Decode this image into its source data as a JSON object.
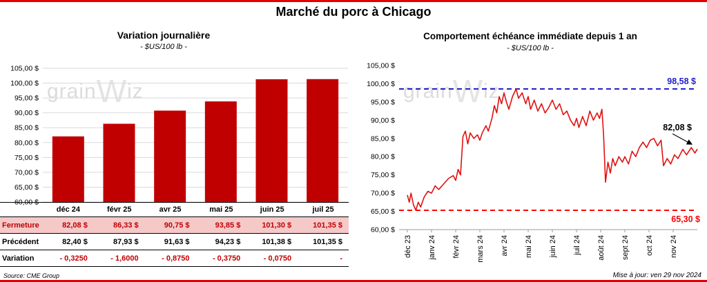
{
  "page": {
    "title": "Marché du porc à Chicago",
    "source": "Source: CME Group",
    "updated": "Mise à jour: ven 29 nov 2024",
    "watermark": {
      "part1": "grain",
      "part2": "W",
      "part3": "iz"
    }
  },
  "colors": {
    "bar": "#c00000",
    "line": "#e01010",
    "resistance": "#1f1fc8",
    "support": "#ff0000",
    "grid": "#d9d9d9",
    "axis": "#9a9a9a",
    "highlight_bg": "#f6c9c9",
    "value_red": "#c00000"
  },
  "table": {
    "columns": [
      "déc 24",
      "févr 25",
      "avr 25",
      "mai 25",
      "juin 25",
      "juil 25"
    ],
    "rows": [
      {
        "label": "Fermeture",
        "values": [
          "82,08 $",
          "86,33 $",
          "90,75 $",
          "93,85 $",
          "101,30 $",
          "101,35 $"
        ]
      },
      {
        "label": "Précédent",
        "values": [
          "82,40 $",
          "87,93 $",
          "91,63 $",
          "94,23 $",
          "101,38 $",
          "101,35 $"
        ]
      },
      {
        "label": "Variation",
        "values": [
          "- 0,3250",
          "- 1,6000",
          "- 0,8750",
          "- 0,3750",
          "- 0,0750",
          "-"
        ]
      }
    ]
  },
  "chart_data": [
    {
      "type": "bar",
      "title": "Variation journalière",
      "subtitle": "- $US/100 lb -",
      "categories": [
        "déc 24",
        "févr 25",
        "avr 25",
        "mai 25",
        "juin 25",
        "juil 25"
      ],
      "values": [
        82.08,
        86.33,
        90.75,
        93.85,
        101.3,
        101.35
      ],
      "ylim": [
        60,
        105
      ],
      "ytick_step": 5,
      "grid": true,
      "bar_color": "#c00000"
    },
    {
      "type": "line",
      "title": "Comportement échéance immédiate depuis 1 an",
      "subtitle": "- $US/100 lb -",
      "x_labels": [
        "déc 23",
        "janv 24",
        "févr 24",
        "mars 24",
        "avr 24",
        "mai 24",
        "juin 24",
        "juil 24",
        "août 24",
        "sept 24",
        "oct 24",
        "nov 24"
      ],
      "ylim": [
        60,
        105
      ],
      "ytick_step": 5,
      "grid": false,
      "line_color": "#e01010",
      "annotations": {
        "resistance": {
          "value": 98.58,
          "label": "98,58 $",
          "color": "#1f1fc8"
        },
        "support": {
          "value": 65.3,
          "label": "65,30 $",
          "color": "#ff0000"
        },
        "last": {
          "value": 82.08,
          "label": "82,08 $"
        }
      },
      "points": [
        [
          0,
          69.5
        ],
        [
          0.08,
          67.5
        ],
        [
          0.15,
          70
        ],
        [
          0.25,
          66.8
        ],
        [
          0.35,
          65.3
        ],
        [
          0.45,
          67.5
        ],
        [
          0.55,
          66.2
        ],
        [
          0.7,
          69
        ],
        [
          0.85,
          70.5
        ],
        [
          1,
          70
        ],
        [
          1.15,
          72
        ],
        [
          1.3,
          71
        ],
        [
          1.5,
          72.5
        ],
        [
          1.7,
          74
        ],
        [
          1.9,
          74.8
        ],
        [
          2,
          73.5
        ],
        [
          2.1,
          76.5
        ],
        [
          2.2,
          75
        ],
        [
          2.3,
          85.5
        ],
        [
          2.4,
          87
        ],
        [
          2.5,
          83.5
        ],
        [
          2.6,
          86.5
        ],
        [
          2.75,
          85
        ],
        [
          2.9,
          86
        ],
        [
          3,
          84.5
        ],
        [
          3.1,
          86.5
        ],
        [
          3.25,
          88.5
        ],
        [
          3.35,
          87
        ],
        [
          3.5,
          90.5
        ],
        [
          3.6,
          94
        ],
        [
          3.7,
          92
        ],
        [
          3.8,
          96.5
        ],
        [
          3.9,
          94.5
        ],
        [
          4,
          97.5
        ],
        [
          4.1,
          95
        ],
        [
          4.2,
          93
        ],
        [
          4.35,
          96.5
        ],
        [
          4.5,
          98.58
        ],
        [
          4.6,
          96
        ],
        [
          4.75,
          97.5
        ],
        [
          4.9,
          94.5
        ],
        [
          5,
          96.5
        ],
        [
          5.1,
          93
        ],
        [
          5.25,
          95.5
        ],
        [
          5.4,
          92.5
        ],
        [
          5.55,
          94.5
        ],
        [
          5.7,
          92
        ],
        [
          5.85,
          93.5
        ],
        [
          6,
          95.5
        ],
        [
          6.15,
          93
        ],
        [
          6.3,
          94.5
        ],
        [
          6.45,
          91.5
        ],
        [
          6.6,
          92.5
        ],
        [
          6.75,
          90
        ],
        [
          6.9,
          88.5
        ],
        [
          7,
          90.5
        ],
        [
          7.1,
          88
        ],
        [
          7.25,
          91
        ],
        [
          7.4,
          88.5
        ],
        [
          7.55,
          92.5
        ],
        [
          7.7,
          90
        ],
        [
          7.85,
          92
        ],
        [
          7.95,
          90.5
        ],
        [
          8.05,
          93
        ],
        [
          8.12,
          86
        ],
        [
          8.2,
          73
        ],
        [
          8.3,
          78.5
        ],
        [
          8.4,
          75.5
        ],
        [
          8.5,
          79.5
        ],
        [
          8.6,
          77.5
        ],
        [
          8.75,
          80
        ],
        [
          8.9,
          78.5
        ],
        [
          9,
          80
        ],
        [
          9.15,
          78
        ],
        [
          9.3,
          81.5
        ],
        [
          9.45,
          80
        ],
        [
          9.6,
          82.5
        ],
        [
          9.75,
          84
        ],
        [
          9.9,
          82.5
        ],
        [
          10.05,
          84.5
        ],
        [
          10.2,
          85
        ],
        [
          10.35,
          83
        ],
        [
          10.5,
          84.5
        ],
        [
          10.6,
          77.5
        ],
        [
          10.75,
          79.5
        ],
        [
          10.9,
          78
        ],
        [
          11.05,
          80.5
        ],
        [
          11.2,
          79.5
        ],
        [
          11.4,
          82
        ],
        [
          11.55,
          80.5
        ],
        [
          11.75,
          82.5
        ],
        [
          11.9,
          81
        ],
        [
          12,
          82.08
        ]
      ]
    }
  ]
}
